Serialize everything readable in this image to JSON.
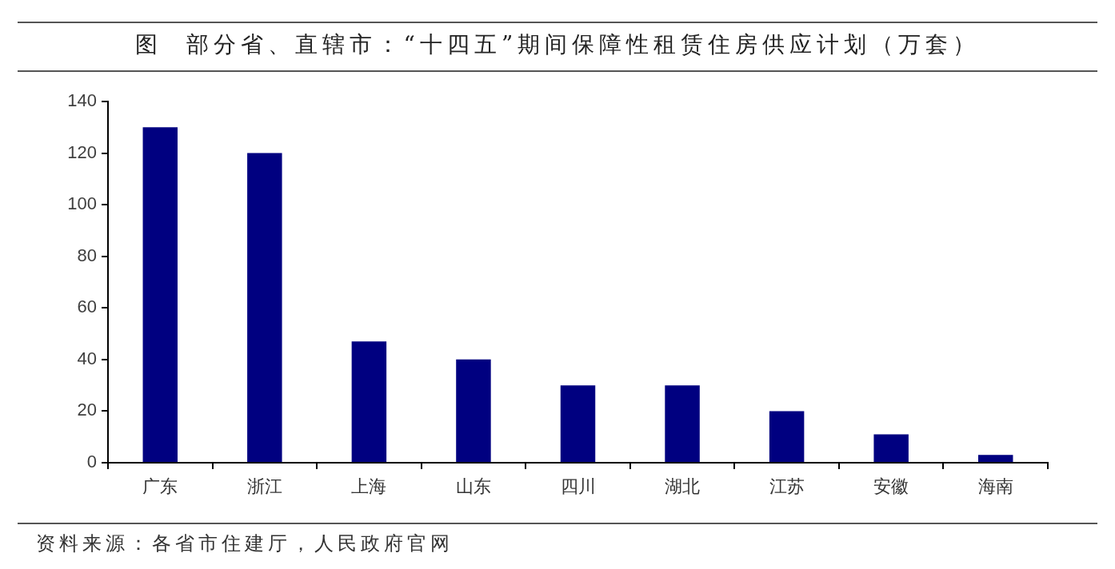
{
  "chart_data": {
    "type": "bar",
    "title": "图  部分省、直辖市：“十四五”期间保障性租赁住房供应计划（万套）",
    "categories": [
      "广东",
      "浙江",
      "上海",
      "山东",
      "四川",
      "湖北",
      "江苏",
      "安徽",
      "海南"
    ],
    "values": [
      130,
      120,
      47,
      40,
      30,
      30,
      20,
      11,
      3
    ],
    "color": "#000080",
    "ylim": [
      0,
      140
    ],
    "yticks": [
      0,
      20,
      40,
      60,
      80,
      100,
      120,
      140
    ],
    "annotations": [
      "资料来源：各省市住建厅，人民政府官网"
    ]
  }
}
